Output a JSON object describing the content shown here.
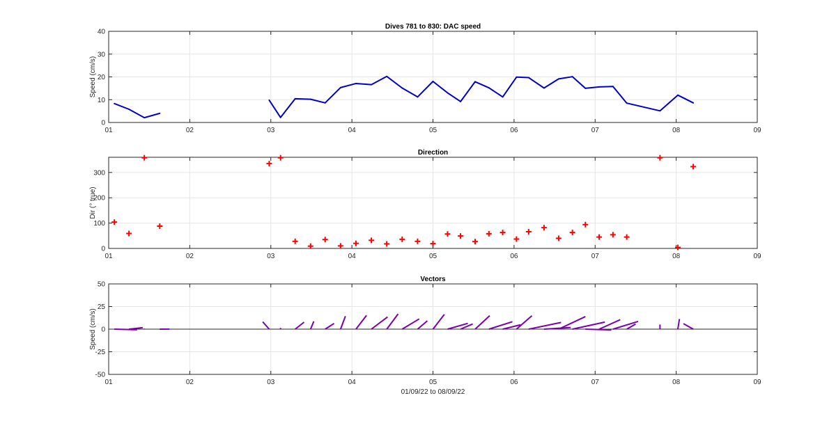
{
  "chart_data": [
    {
      "type": "line",
      "title": "Dives 781 to 830: DAC speed",
      "xlabel": "",
      "ylabel": "Speed (cm/s)",
      "xlim": [
        1,
        9
      ],
      "ylim": [
        0,
        40
      ],
      "xticks": [
        1,
        2,
        3,
        4,
        5,
        6,
        7,
        8,
        9
      ],
      "xticklabels": [
        "01",
        "02",
        "03",
        "04",
        "05",
        "06",
        "07",
        "08",
        "09"
      ],
      "yticks": [
        0,
        10,
        20,
        30,
        40
      ],
      "yticklabels": [
        "0",
        "10",
        "20",
        "30",
        "40"
      ],
      "grid": true,
      "color": "#0000cc",
      "segments": [
        {
          "x": [
            1.07,
            1.25,
            1.44,
            1.63
          ],
          "y": [
            8.3,
            5.8,
            2.1,
            4.0
          ]
        },
        {
          "x": [
            2.98,
            3.12,
            3.3,
            3.49,
            3.67,
            3.86,
            4.05,
            4.24,
            4.43,
            4.62,
            4.81,
            5.0,
            5.18,
            5.34,
            5.52,
            5.69,
            5.86,
            6.03,
            6.18,
            6.37,
            6.55,
            6.72,
            6.88,
            7.05,
            7.22,
            7.39,
            7.8,
            8.02,
            8.21
          ],
          "y": [
            9.8,
            2.2,
            10.4,
            10.2,
            8.6,
            15.3,
            17.1,
            16.6,
            20.2,
            15.1,
            11.2,
            18.0,
            13.0,
            9.2,
            17.9,
            15.2,
            11.2,
            19.9,
            19.7,
            15.1,
            19.1,
            20.1,
            15.0,
            15.6,
            15.8,
            8.5,
            5.1,
            12.0,
            8.6
          ]
        }
      ]
    },
    {
      "type": "scatter",
      "title": "Direction",
      "xlabel": "",
      "ylabel": "Dir (° true)",
      "xlim": [
        1,
        9
      ],
      "ylim": [
        0,
        360
      ],
      "xticks": [
        1,
        2,
        3,
        4,
        5,
        6,
        7,
        8,
        9
      ],
      "xticklabels": [
        "01",
        "02",
        "03",
        "04",
        "05",
        "06",
        "07",
        "08",
        "09"
      ],
      "yticks": [
        0,
        100,
        200,
        300
      ],
      "yticklabels": [
        "0",
        "100",
        "200",
        "300"
      ],
      "grid": true,
      "marker": "+",
      "color": "#ff0000",
      "x": [
        1.07,
        1.25,
        1.44,
        1.63,
        2.98,
        3.12,
        3.3,
        3.49,
        3.67,
        3.86,
        4.05,
        4.24,
        4.43,
        4.62,
        4.81,
        5.0,
        5.18,
        5.34,
        5.52,
        5.69,
        5.86,
        6.03,
        6.18,
        6.37,
        6.55,
        6.72,
        6.88,
        7.05,
        7.22,
        7.39,
        7.8,
        8.02,
        8.21
      ],
      "y": [
        104,
        59,
        358,
        88,
        335,
        358,
        28,
        9,
        35,
        10,
        20,
        32,
        18,
        36,
        28,
        19,
        57,
        49,
        27,
        58,
        63,
        37,
        66,
        82,
        40,
        63,
        94,
        45,
        54,
        45,
        358,
        4,
        323
      ]
    },
    {
      "type": "line",
      "subtype": "vectors",
      "title": "Vectors",
      "xlabel": "01/09/22 to 08/09/22",
      "ylabel": "Speed (cm/s)",
      "xlim": [
        1,
        9
      ],
      "ylim": [
        -50,
        50
      ],
      "xticks": [
        1,
        2,
        3,
        4,
        5,
        6,
        7,
        8,
        9
      ],
      "xticklabels": [
        "01",
        "02",
        "03",
        "04",
        "05",
        "06",
        "07",
        "08",
        "09"
      ],
      "yticks": [
        -50,
        -25,
        0,
        25,
        50
      ],
      "yticklabels": [
        "-50",
        "-25",
        "0",
        "25",
        "50"
      ],
      "grid": true,
      "zero_line": true,
      "color": "#7a00b0",
      "vectors": [
        {
          "x": 1.07,
          "u": 0.28,
          "v": -0.7
        },
        {
          "x": 1.25,
          "u": 0.17,
          "v": 1.6
        },
        {
          "x": 1.44,
          "u": 0.0,
          "v": 0.6
        },
        {
          "x": 1.63,
          "u": 0.12,
          "v": 0.1
        },
        {
          "x": 2.98,
          "u": -0.08,
          "v": 8.1
        },
        {
          "x": 3.12,
          "u": 0.0,
          "v": 1.3
        },
        {
          "x": 3.3,
          "u": 0.11,
          "v": 7.7
        },
        {
          "x": 3.49,
          "u": 0.04,
          "v": 8.6
        },
        {
          "x": 3.67,
          "u": 0.11,
          "v": 6.3
        },
        {
          "x": 3.86,
          "u": 0.06,
          "v": 14.3
        },
        {
          "x": 4.05,
          "u": 0.13,
          "v": 15.2
        },
        {
          "x": 4.24,
          "u": 0.2,
          "v": 13.5
        },
        {
          "x": 4.43,
          "u": 0.14,
          "v": 16.8
        },
        {
          "x": 4.62,
          "u": 0.21,
          "v": 11.3
        },
        {
          "x": 4.81,
          "u": 0.12,
          "v": 9.1
        },
        {
          "x": 5.0,
          "u": 0.14,
          "v": 16.3
        },
        {
          "x": 5.18,
          "u": 0.25,
          "v": 6.4
        },
        {
          "x": 5.34,
          "u": 0.15,
          "v": 5.7
        },
        {
          "x": 5.52,
          "u": 0.18,
          "v": 14.9
        },
        {
          "x": 5.69,
          "u": 0.29,
          "v": 8.2
        },
        {
          "x": 5.86,
          "u": 0.22,
          "v": 4.8
        },
        {
          "x": 6.03,
          "u": 0.19,
          "v": 14.8
        },
        {
          "x": 6.18,
          "u": 0.4,
          "v": 7.4
        },
        {
          "x": 6.37,
          "u": 0.33,
          "v": 1.8
        },
        {
          "x": 6.55,
          "u": 0.33,
          "v": 13.9
        },
        {
          "x": 6.72,
          "u": 0.4,
          "v": 7.8
        },
        {
          "x": 6.88,
          "u": 0.32,
          "v": -0.9
        },
        {
          "x": 7.05,
          "u": 0.26,
          "v": 10.5
        },
        {
          "x": 7.22,
          "u": 0.31,
          "v": 8.5
        },
        {
          "x": 7.39,
          "u": 0.11,
          "v": 5.7
        },
        {
          "x": 7.8,
          "u": 0.0,
          "v": 5.1
        },
        {
          "x": 8.02,
          "u": 0.02,
          "v": 11.2
        },
        {
          "x": 8.21,
          "u": -0.12,
          "v": 6.1
        }
      ]
    }
  ]
}
